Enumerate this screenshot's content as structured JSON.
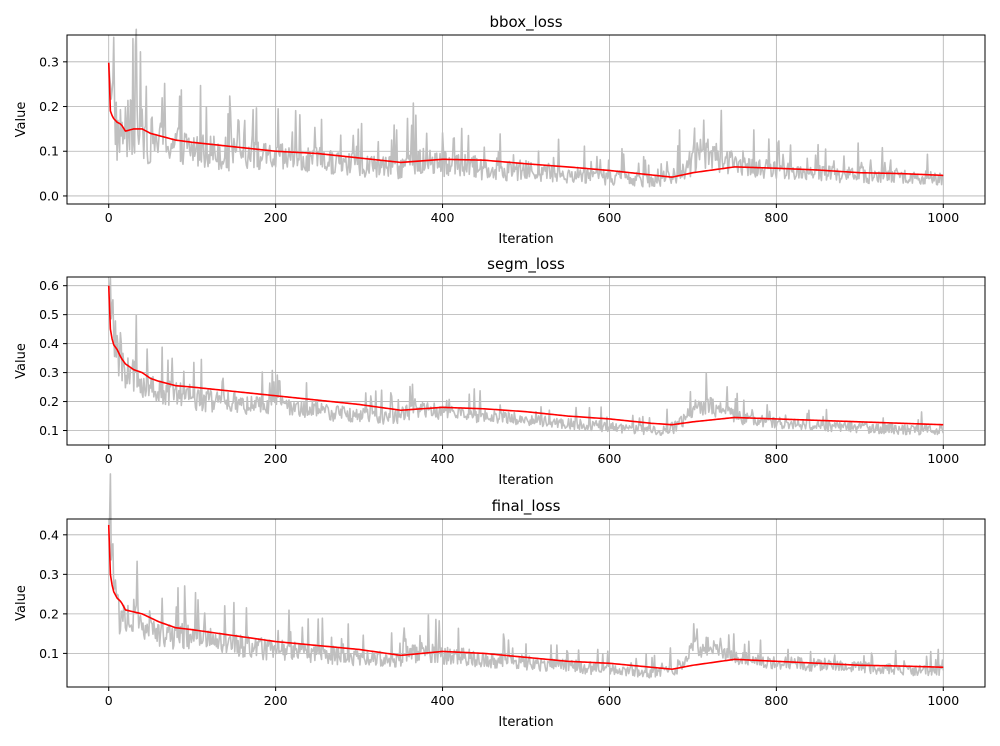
{
  "colors": {
    "raw": "#bfbfbf",
    "smooth": "#ff0000",
    "grid": "#b0b0b0",
    "axes": "#000000",
    "background": "#ffffff"
  },
  "chart_data": [
    {
      "type": "line",
      "title": "bbox_loss",
      "xlabel": "Iteration",
      "ylabel": "Value",
      "xlim": [
        -50,
        1050
      ],
      "ylim": [
        -0.018,
        0.36
      ],
      "xticks": [
        0,
        200,
        400,
        600,
        800,
        1000
      ],
      "yticks": [
        0.0,
        0.1,
        0.2,
        0.3
      ],
      "ytick_labels": [
        "0.0",
        "0.1",
        "0.2",
        "0.3"
      ],
      "grid": true,
      "series": [
        {
          "role": "raw",
          "x": [
            0,
            10,
            20,
            30,
            40,
            50,
            60,
            80,
            100,
            120,
            140,
            160,
            180,
            200,
            220,
            240,
            260,
            280,
            300,
            320,
            340,
            360,
            380,
            400,
            420,
            440,
            460,
            480,
            500,
            520,
            540,
            560,
            580,
            600,
            620,
            640,
            660,
            680,
            700,
            720,
            740,
            760,
            780,
            800,
            820,
            840,
            860,
            880,
            900,
            920,
            940,
            960,
            980,
            1000
          ],
          "y": [
            0.3,
            0.13,
            0.14,
            0.14,
            0.13,
            0.12,
            0.12,
            0.11,
            0.1,
            0.1,
            0.09,
            0.09,
            0.085,
            0.08,
            0.08,
            0.075,
            0.075,
            0.07,
            0.065,
            0.065,
            0.06,
            0.07,
            0.075,
            0.07,
            0.065,
            0.06,
            0.06,
            0.055,
            0.055,
            0.05,
            0.05,
            0.045,
            0.045,
            0.04,
            0.04,
            0.035,
            0.035,
            0.04,
            0.08,
            0.09,
            0.075,
            0.065,
            0.06,
            0.055,
            0.055,
            0.05,
            0.05,
            0.045,
            0.045,
            0.04,
            0.045,
            0.04,
            0.04,
            0.035
          ],
          "variability": [
            0.1,
            0.12,
            0.12,
            0.13,
            0.11,
            0.1,
            0.08,
            0.08,
            0.08,
            0.07,
            0.07,
            0.06,
            0.06,
            0.06,
            0.06,
            0.055,
            0.055,
            0.05,
            0.05,
            0.045,
            0.045,
            0.06,
            0.07,
            0.06,
            0.05,
            0.05,
            0.045,
            0.045,
            0.04,
            0.04,
            0.04,
            0.035,
            0.035,
            0.035,
            0.03,
            0.03,
            0.03,
            0.04,
            0.07,
            0.07,
            0.05,
            0.04,
            0.04,
            0.035,
            0.035,
            0.035,
            0.035,
            0.035,
            0.035,
            0.035,
            0.035,
            0.03,
            0.03,
            0.03
          ],
          "floor": 0.005
        },
        {
          "role": "smoothed",
          "x": [
            0,
            2,
            5,
            10,
            15,
            20,
            30,
            40,
            50,
            60,
            80,
            100,
            150,
            200,
            250,
            300,
            350,
            400,
            450,
            500,
            550,
            600,
            650,
            675,
            700,
            750,
            800,
            850,
            900,
            950,
            1000
          ],
          "y": [
            0.298,
            0.19,
            0.175,
            0.165,
            0.16,
            0.145,
            0.15,
            0.15,
            0.14,
            0.135,
            0.125,
            0.12,
            0.11,
            0.1,
            0.095,
            0.085,
            0.075,
            0.082,
            0.08,
            0.072,
            0.065,
            0.057,
            0.047,
            0.042,
            0.052,
            0.065,
            0.062,
            0.058,
            0.052,
            0.05,
            0.046
          ]
        }
      ]
    },
    {
      "type": "line",
      "title": "segm_loss",
      "xlabel": "Iteration",
      "ylabel": "Value",
      "xlim": [
        -50,
        1050
      ],
      "ylim": [
        0.05,
        0.63
      ],
      "xticks": [
        0,
        200,
        400,
        600,
        800,
        1000
      ],
      "yticks": [
        0.1,
        0.2,
        0.3,
        0.4,
        0.5,
        0.6
      ],
      "ytick_labels": [
        "0.1",
        "0.2",
        "0.3",
        "0.4",
        "0.5",
        "0.6"
      ],
      "grid": true,
      "series": [
        {
          "role": "raw",
          "x": [
            0,
            10,
            20,
            30,
            40,
            50,
            60,
            80,
            100,
            120,
            140,
            160,
            180,
            200,
            220,
            240,
            260,
            280,
            300,
            320,
            340,
            360,
            380,
            400,
            420,
            440,
            460,
            480,
            500,
            520,
            540,
            560,
            580,
            600,
            620,
            640,
            660,
            680,
            700,
            720,
            740,
            760,
            780,
            800,
            820,
            840,
            860,
            880,
            900,
            920,
            940,
            960,
            980,
            1000
          ],
          "y": [
            0.6,
            0.35,
            0.3,
            0.28,
            0.26,
            0.25,
            0.23,
            0.22,
            0.21,
            0.2,
            0.19,
            0.19,
            0.18,
            0.18,
            0.175,
            0.17,
            0.16,
            0.155,
            0.15,
            0.145,
            0.14,
            0.16,
            0.165,
            0.16,
            0.155,
            0.15,
            0.145,
            0.14,
            0.135,
            0.13,
            0.125,
            0.12,
            0.115,
            0.11,
            0.105,
            0.1,
            0.095,
            0.11,
            0.17,
            0.18,
            0.16,
            0.14,
            0.13,
            0.125,
            0.12,
            0.12,
            0.115,
            0.11,
            0.11,
            0.105,
            0.105,
            0.1,
            0.1,
            0.1
          ],
          "variability": [
            0.2,
            0.14,
            0.12,
            0.12,
            0.1,
            0.09,
            0.08,
            0.08,
            0.08,
            0.075,
            0.07,
            0.065,
            0.06,
            0.06,
            0.06,
            0.055,
            0.055,
            0.05,
            0.05,
            0.045,
            0.045,
            0.055,
            0.06,
            0.05,
            0.045,
            0.045,
            0.04,
            0.04,
            0.04,
            0.035,
            0.035,
            0.035,
            0.035,
            0.03,
            0.03,
            0.03,
            0.03,
            0.04,
            0.06,
            0.06,
            0.045,
            0.04,
            0.04,
            0.035,
            0.035,
            0.035,
            0.035,
            0.035,
            0.035,
            0.035,
            0.035,
            0.03,
            0.03,
            0.03
          ],
          "floor": 0.07
        },
        {
          "role": "smoothed",
          "x": [
            0,
            2,
            5,
            10,
            15,
            20,
            30,
            40,
            50,
            60,
            80,
            100,
            150,
            200,
            250,
            300,
            350,
            400,
            450,
            500,
            550,
            600,
            650,
            675,
            700,
            750,
            800,
            850,
            900,
            950,
            1000
          ],
          "y": [
            0.6,
            0.45,
            0.4,
            0.38,
            0.35,
            0.33,
            0.31,
            0.3,
            0.28,
            0.27,
            0.255,
            0.25,
            0.235,
            0.22,
            0.205,
            0.19,
            0.17,
            0.18,
            0.175,
            0.165,
            0.15,
            0.14,
            0.125,
            0.12,
            0.13,
            0.145,
            0.14,
            0.135,
            0.13,
            0.125,
            0.12
          ]
        }
      ]
    },
    {
      "type": "line",
      "title": "final_loss",
      "xlabel": "Iteration",
      "ylabel": "Value",
      "xlim": [
        -50,
        1050
      ],
      "ylim": [
        0.015,
        0.44
      ],
      "xticks": [
        0,
        200,
        400,
        600,
        800,
        1000
      ],
      "yticks": [
        0.1,
        0.2,
        0.3,
        0.4
      ],
      "ytick_labels": [
        "0.1",
        "0.2",
        "0.3",
        "0.4"
      ],
      "grid": true,
      "series": [
        {
          "role": "raw",
          "x": [
            0,
            10,
            20,
            30,
            40,
            50,
            60,
            80,
            100,
            120,
            140,
            160,
            180,
            200,
            220,
            240,
            260,
            280,
            300,
            320,
            340,
            360,
            380,
            400,
            420,
            440,
            460,
            480,
            500,
            520,
            540,
            560,
            580,
            600,
            620,
            640,
            660,
            680,
            700,
            720,
            740,
            760,
            780,
            800,
            820,
            840,
            860,
            880,
            900,
            920,
            940,
            960,
            980,
            1000
          ],
          "y": [
            0.42,
            0.2,
            0.19,
            0.18,
            0.17,
            0.16,
            0.15,
            0.14,
            0.14,
            0.13,
            0.12,
            0.115,
            0.11,
            0.105,
            0.105,
            0.1,
            0.095,
            0.09,
            0.085,
            0.085,
            0.08,
            0.095,
            0.1,
            0.095,
            0.09,
            0.085,
            0.08,
            0.08,
            0.075,
            0.07,
            0.07,
            0.065,
            0.06,
            0.06,
            0.055,
            0.05,
            0.05,
            0.06,
            0.11,
            0.12,
            0.095,
            0.085,
            0.08,
            0.075,
            0.075,
            0.07,
            0.07,
            0.065,
            0.065,
            0.06,
            0.06,
            0.055,
            0.055,
            0.055
          ],
          "variability": [
            0.15,
            0.11,
            0.1,
            0.1,
            0.08,
            0.08,
            0.07,
            0.065,
            0.06,
            0.06,
            0.055,
            0.05,
            0.05,
            0.05,
            0.05,
            0.045,
            0.045,
            0.04,
            0.04,
            0.035,
            0.035,
            0.045,
            0.05,
            0.045,
            0.04,
            0.04,
            0.035,
            0.035,
            0.035,
            0.03,
            0.03,
            0.03,
            0.03,
            0.025,
            0.025,
            0.025,
            0.025,
            0.03,
            0.05,
            0.05,
            0.035,
            0.03,
            0.03,
            0.03,
            0.03,
            0.03,
            0.03,
            0.025,
            0.025,
            0.025,
            0.025,
            0.025,
            0.025,
            0.025
          ],
          "floor": 0.03
        },
        {
          "role": "smoothed",
          "x": [
            0,
            2,
            5,
            10,
            15,
            20,
            30,
            40,
            50,
            60,
            80,
            100,
            150,
            200,
            250,
            300,
            350,
            400,
            450,
            500,
            550,
            600,
            650,
            675,
            700,
            750,
            800,
            850,
            900,
            950,
            1000
          ],
          "y": [
            0.425,
            0.3,
            0.26,
            0.24,
            0.23,
            0.21,
            0.205,
            0.2,
            0.19,
            0.18,
            0.165,
            0.16,
            0.145,
            0.13,
            0.12,
            0.11,
            0.095,
            0.105,
            0.1,
            0.09,
            0.08,
            0.075,
            0.065,
            0.06,
            0.07,
            0.085,
            0.08,
            0.075,
            0.07,
            0.068,
            0.065
          ]
        }
      ]
    }
  ]
}
